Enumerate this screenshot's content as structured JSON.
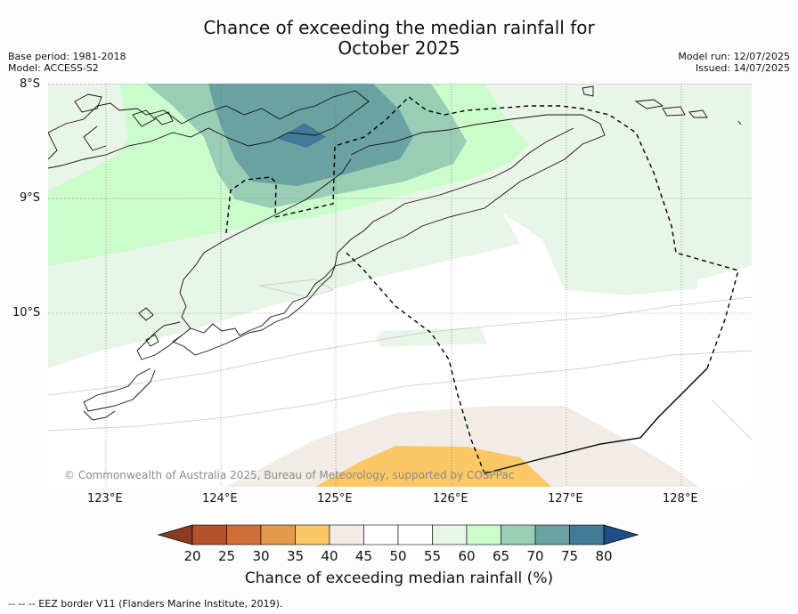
{
  "title_line1": "Chance of exceeding the median rainfall for",
  "title_line2": "October 2025",
  "base_period": "Base period: 1981-2018",
  "model": "Model: ACCESS-S2",
  "model_run": "Model run: 12/07/2025",
  "issued": "Issued: 14/07/2025",
  "lat_labels": [
    "8°S",
    "9°S",
    "10°S"
  ],
  "lon_labels": [
    "123°E",
    "124°E",
    "125°E",
    "126°E",
    "127°E",
    "128°E"
  ],
  "copyright": "© Commonwealth of Australia 2025, Bureau of Meteorology, supported by COSPPac",
  "colorbar": {
    "label": "Chance of exceeding median rainfall (%)",
    "ticks": [
      "20",
      "25",
      "30",
      "35",
      "40",
      "45",
      "50",
      "55",
      "60",
      "65",
      "70",
      "75",
      "80"
    ],
    "colors": [
      "#8b3a22",
      "#b5502d",
      "#cf6e37",
      "#e39a4c",
      "#fcc866",
      "#f1ede6",
      "#ffffff",
      "#ffffff",
      "#e9f5e8",
      "#ccfccc",
      "#99cdb5",
      "#6aa2a1",
      "#427998",
      "#1e4e88"
    ]
  },
  "footnote": "--  --  -- EEZ border V11 (Flanders Marine Institute, 2019)."
}
